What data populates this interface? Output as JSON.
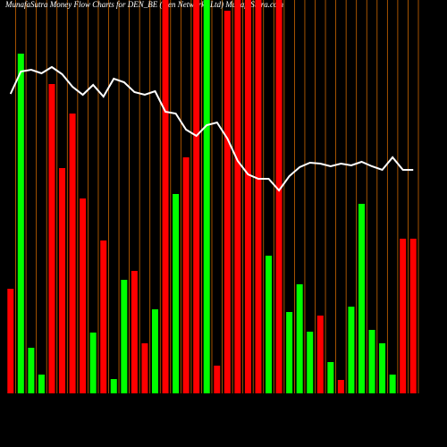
{
  "chart_data": {
    "type": "bar",
    "title": "MunafaSutra  Money Flow  Charts for DEN_BE (Den Networks Ltd) MunafaSutra.com",
    "categories": [
      null,
      null,
      null,
      null,
      null,
      null,
      null,
      null,
      null,
      null,
      null,
      null,
      null,
      null,
      null,
      null,
      null,
      null,
      null,
      null,
      null,
      null,
      null,
      null,
      null,
      null,
      null,
      null,
      null,
      null,
      null,
      null,
      null,
      null,
      null,
      null,
      null,
      null,
      null,
      null
    ],
    "series": [
      {
        "values": [
          117,
          380,
          51,
          21,
          346,
          252,
          313,
          218,
          68,
          171,
          16,
          127,
          137,
          56,
          94,
          440,
          223,
          264,
          440,
          440,
          31,
          428,
          440,
          440,
          440,
          154,
          440,
          91,
          122,
          69,
          87,
          35,
          15,
          97,
          212,
          71,
          56,
          21,
          173,
          173
        ],
        "colors": [
          "#ff0000",
          "#00ff00",
          "#00ff00",
          "#00ff00",
          "#ff0000",
          "#ff0000",
          "#ff0000",
          "#ff0000",
          "#00ff00",
          "#ff0000",
          "#00ff00",
          "#00ff00",
          "#ff0000",
          "#ff0000",
          "#00ff00",
          "#ff0000",
          "#00ff00",
          "#ff0000",
          "#ff0000",
          "#00ff00",
          "#ff0000",
          "#ff0000",
          "#ff0000",
          "#ff0000",
          "#ff0000",
          "#00ff00",
          "#ff0000",
          "#00ff00",
          "#00ff00",
          "#00ff00",
          "#ff0000",
          "#00ff00",
          "#ff0000",
          "#00ff00",
          "#00ff00",
          "#00ff00",
          "#00ff00",
          "#00ff00",
          "#ff0000",
          "#ff0000"
        ]
      },
      {
        "type": "line",
        "color": "#ffffff",
        "values": [
          335,
          360,
          362,
          358,
          365,
          357,
          343,
          334,
          345,
          332,
          352,
          348,
          337,
          334,
          338,
          315,
          313,
          295,
          288,
          300,
          303,
          285,
          260,
          245,
          240,
          240,
          227,
          243,
          253,
          258,
          257,
          254,
          257,
          255,
          259,
          254,
          250,
          264,
          250,
          250
        ]
      }
    ],
    "ylim": [
      0,
      440
    ],
    "grid_color": "#cc6600"
  }
}
